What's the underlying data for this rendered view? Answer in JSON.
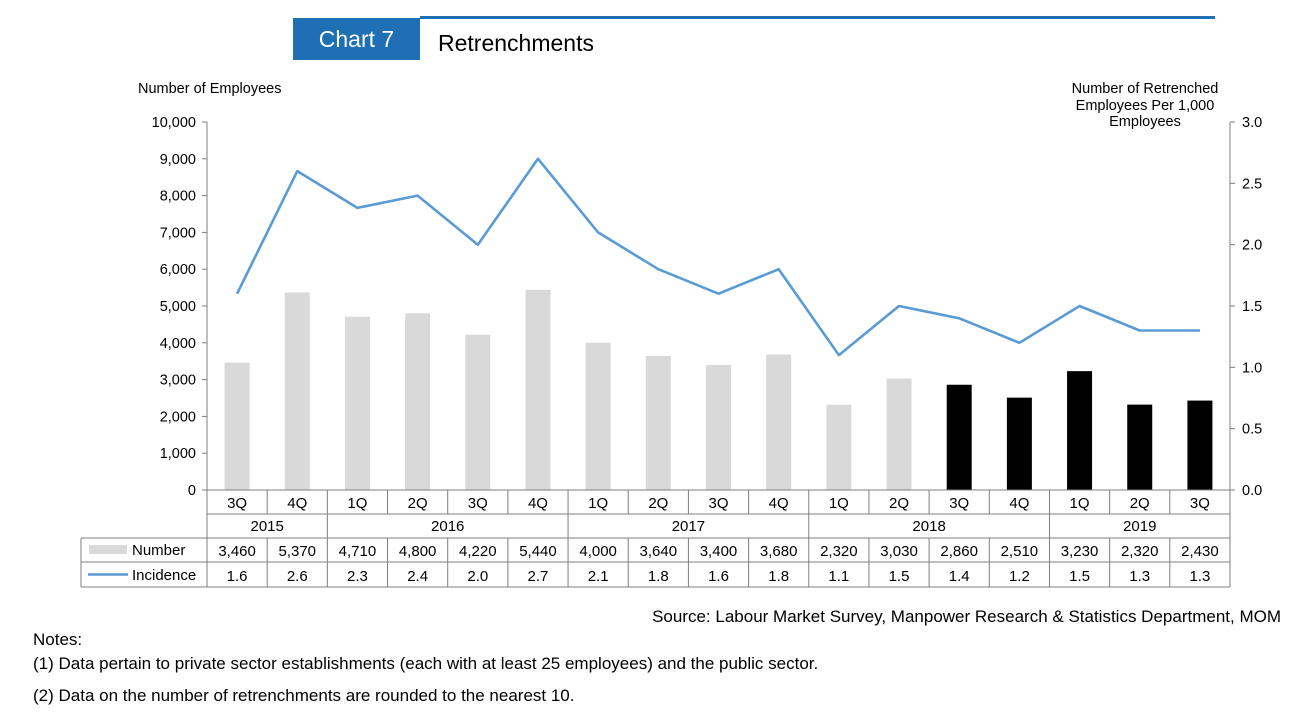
{
  "header": {
    "badge": "Chart 7",
    "title": "Retrenchments",
    "accent_color": "#1f6fb5"
  },
  "chart_data": {
    "type": "bar",
    "ylabel_left": "Number of Employees",
    "ylabel_right": "Number of Retrenched Employees Per 1,000 Employees",
    "left_axis": {
      "range": [
        0,
        10000
      ],
      "ticks": [
        "0",
        "1,000",
        "2,000",
        "3,000",
        "4,000",
        "5,000",
        "6,000",
        "7,000",
        "8,000",
        "9,000",
        "10,000"
      ]
    },
    "right_axis": {
      "range": [
        0,
        3.0
      ],
      "ticks": [
        "0.0",
        "0.5",
        "1.0",
        "1.5",
        "2.0",
        "2.5",
        "3.0"
      ]
    },
    "grid": false,
    "categories": [
      "3Q",
      "4Q",
      "1Q",
      "2Q",
      "3Q",
      "4Q",
      "1Q",
      "2Q",
      "3Q",
      "4Q",
      "1Q",
      "2Q",
      "3Q",
      "4Q",
      "1Q",
      "2Q",
      "3Q"
    ],
    "years": [
      {
        "label": "2015",
        "count": 2
      },
      {
        "label": "2016",
        "count": 4
      },
      {
        "label": "2017",
        "count": 4
      },
      {
        "label": "2018",
        "count": 4
      },
      {
        "label": "2019",
        "count": 3
      }
    ],
    "series": [
      {
        "name": "Number",
        "type": "bar",
        "axis": "left",
        "values": [
          3460,
          5370,
          4710,
          4800,
          4220,
          5440,
          4000,
          3640,
          3400,
          3680,
          2320,
          3030,
          2860,
          2510,
          3230,
          2320,
          2430
        ],
        "labels": [
          "3,460",
          "5,370",
          "4,710",
          "4,800",
          "4,220",
          "5,440",
          "4,000",
          "3,640",
          "3,400",
          "3,680",
          "2,320",
          "3,030",
          "2,860",
          "2,510",
          "3,230",
          "2,320",
          "2,430"
        ],
        "color": "#d9d9d9",
        "highlight_color": "#000000",
        "highlight_from_index": 12
      },
      {
        "name": "Incidence",
        "type": "line",
        "axis": "right",
        "values": [
          1.6,
          2.6,
          2.3,
          2.4,
          2.0,
          2.7,
          2.1,
          1.8,
          1.6,
          1.8,
          1.1,
          1.5,
          1.4,
          1.2,
          1.5,
          1.3,
          1.3
        ],
        "labels": [
          "1.6",
          "2.6",
          "2.3",
          "2.4",
          "2.0",
          "2.7",
          "2.1",
          "1.8",
          "1.6",
          "1.8",
          "1.1",
          "1.5",
          "1.4",
          "1.2",
          "1.5",
          "1.3",
          "1.3"
        ],
        "color": "#5b9bd5"
      }
    ]
  },
  "footer": {
    "source": "Source: Labour Market Survey, Manpower Research & Statistics Department, MOM",
    "notes_heading": "Notes:",
    "notes": [
      "(1)  Data pertain to private sector establishments (each with at least 25 employees) and the public sector.",
      "(2)  Data on the number of retrenchments are rounded to the nearest 10."
    ]
  }
}
